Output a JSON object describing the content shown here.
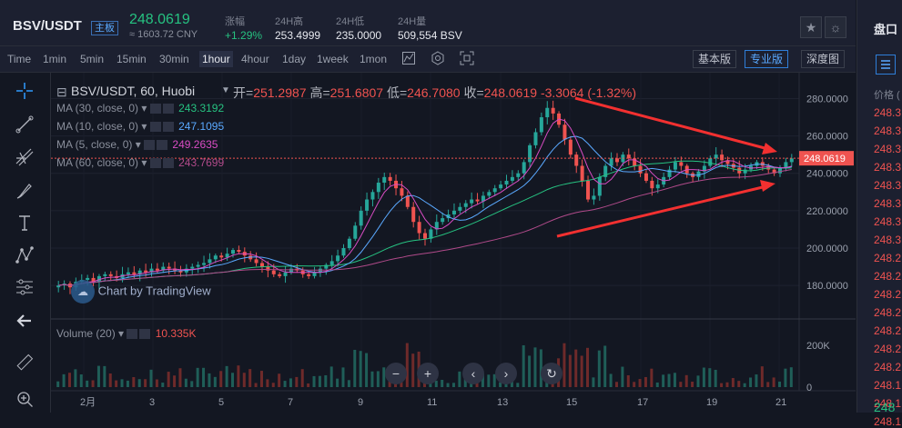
{
  "header": {
    "pair": "BSV/USDT",
    "market_badge": "主板",
    "last_price": "248.0619",
    "cny_price": "≈ 1603.72 CNY",
    "stats": [
      {
        "label": "涨幅",
        "value": "+1.29%",
        "color": "#26c281"
      },
      {
        "label": "24H高",
        "value": "253.4999",
        "color": "#e6e8ee"
      },
      {
        "label": "24H低",
        "value": "235.0000",
        "color": "#e6e8ee"
      },
      {
        "label": "24H量",
        "value": "509,554 BSV",
        "color": "#e6e8ee"
      }
    ],
    "star_icon": "star-icon",
    "theme_icon": "sun-icon"
  },
  "toolbar": {
    "intervals": [
      "Time",
      "1min",
      "5min",
      "15min",
      "30min",
      "1hour",
      "4hour",
      "1day",
      "1week",
      "1mon"
    ],
    "active_interval": "1hour",
    "icons": [
      "indicator-icon",
      "settings-icon",
      "fullscreen-icon"
    ],
    "views": [
      "基本版",
      "专业版",
      "深度图"
    ],
    "active_view": "专业版"
  },
  "left_tools": [
    "crosshair-icon",
    "trendline-icon",
    "fib-icon",
    "brush-icon",
    "text-icon",
    "pattern-icon",
    "measure-icon",
    "back-arrow-icon",
    "ruler-icon",
    "zoom-in-icon"
  ],
  "chart_data": {
    "type": "candlestick",
    "symbol_line": "BSV/USDT, 60, Huobi",
    "ohlc": {
      "open_label": "开=",
      "open": "251.2987",
      "high_label": "高=",
      "high": "251.6807",
      "low_label": "低=",
      "low": "246.7080",
      "close_label": "收=",
      "close": "248.0619",
      "change": "-3.3064",
      "change_pct": "(-1.32%)"
    },
    "indicators": [
      {
        "label": "MA (30, close, 0)",
        "value": "243.3192",
        "color": "#26c281"
      },
      {
        "label": "MA (10, close, 0)",
        "value": "247.1095",
        "color": "#5aa9ff"
      },
      {
        "label": "MA (5, close, 0)",
        "value": "249.2635",
        "color": "#d94cc4"
      },
      {
        "label": "MA (60, close, 0)",
        "value": "243.7699",
        "color": "#b04a8a"
      }
    ],
    "y_ticks": [
      "280.0000",
      "260.0000",
      "240.0000",
      "220.0000",
      "200.0000",
      "180.0000"
    ],
    "y_tick_values": [
      280,
      260,
      240,
      220,
      200,
      180
    ],
    "price_tag": "248.0619",
    "x_ticks": [
      "2月",
      "3",
      "5",
      "7",
      "9",
      "11",
      "13",
      "15",
      "17",
      "19",
      "21"
    ],
    "volume_label": "Volume (20)",
    "volume_value": "10.335K",
    "volume_ticks": [
      "200K",
      "0"
    ],
    "watermark": "Chart by TradingView",
    "nav_icons": [
      "zoom-out-icon",
      "zoom-in-icon",
      "scroll-left-icon",
      "scroll-right-icon",
      "reset-icon"
    ],
    "closes": [
      180,
      181,
      179,
      182,
      183,
      184,
      182,
      185,
      186,
      185,
      184,
      186,
      187,
      186,
      188,
      187,
      189,
      188,
      190,
      189,
      188,
      187,
      189,
      190,
      191,
      192,
      194,
      196,
      195,
      197,
      199,
      198,
      196,
      194,
      192,
      190,
      188,
      186,
      185,
      187,
      189,
      188,
      186,
      185,
      187,
      189,
      191,
      193,
      196,
      200,
      205,
      212,
      220,
      226,
      230,
      235,
      238,
      236,
      232,
      228,
      222,
      214,
      208,
      205,
      210,
      214,
      216,
      218,
      220,
      222,
      224,
      226,
      225,
      228,
      230,
      232,
      234,
      236,
      238,
      240,
      246,
      255,
      262,
      270,
      275,
      272,
      266,
      258,
      250,
      244,
      236,
      226,
      228,
      238,
      244,
      248,
      246,
      250,
      248,
      244,
      240,
      236,
      232,
      234,
      238,
      242,
      246,
      244,
      240,
      238,
      241,
      244,
      248,
      250,
      247,
      245,
      243,
      240,
      242,
      244,
      246,
      244,
      242,
      240,
      243,
      246,
      248
    ]
  },
  "right_panel": {
    "title": "盘口",
    "column": "价格 (",
    "prices": [
      "248.3",
      "248.3",
      "248.3",
      "248.3",
      "248.3",
      "248.3",
      "248.3",
      "248.3",
      "248.2",
      "248.2",
      "248.2",
      "248.2",
      "248.2",
      "248.2",
      "248.2",
      "248.1",
      "248.1",
      "248.1"
    ],
    "bottom_price": "248"
  }
}
